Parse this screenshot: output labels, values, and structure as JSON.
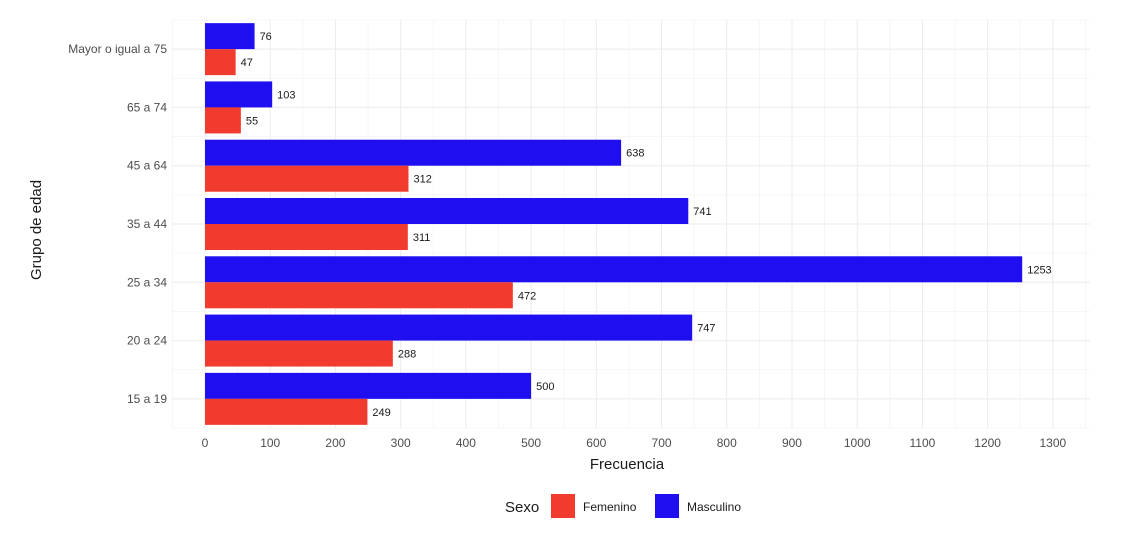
{
  "chart_data": {
    "type": "bar",
    "orientation": "horizontal",
    "categories": [
      "Mayor o igual a 75",
      "65 a 74",
      "45 a 64",
      "35 a 44",
      "25 a 34",
      "20 a 24",
      "15 a 19"
    ],
    "series": [
      {
        "name": "Masculino",
        "color": "#1f0ff0",
        "values": [
          76,
          103,
          638,
          741,
          1253,
          747,
          500
        ]
      },
      {
        "name": "Femenino",
        "color": "#f23b2f",
        "values": [
          47,
          55,
          312,
          311,
          472,
          288,
          249
        ]
      }
    ],
    "xlabel": "Frecuencia",
    "ylabel": "Grupo de edad",
    "xlim": [
      -50,
      1360
    ],
    "xticks": [
      0,
      100,
      200,
      300,
      400,
      500,
      600,
      700,
      800,
      900,
      1000,
      1100,
      1200,
      1300
    ],
    "grid": true,
    "legend": {
      "title": "Sexo",
      "position": "bottom",
      "items": [
        {
          "label": "Femenino",
          "color": "#f23b2f"
        },
        {
          "label": "Masculino",
          "color": "#1f0ff0"
        }
      ]
    }
  }
}
